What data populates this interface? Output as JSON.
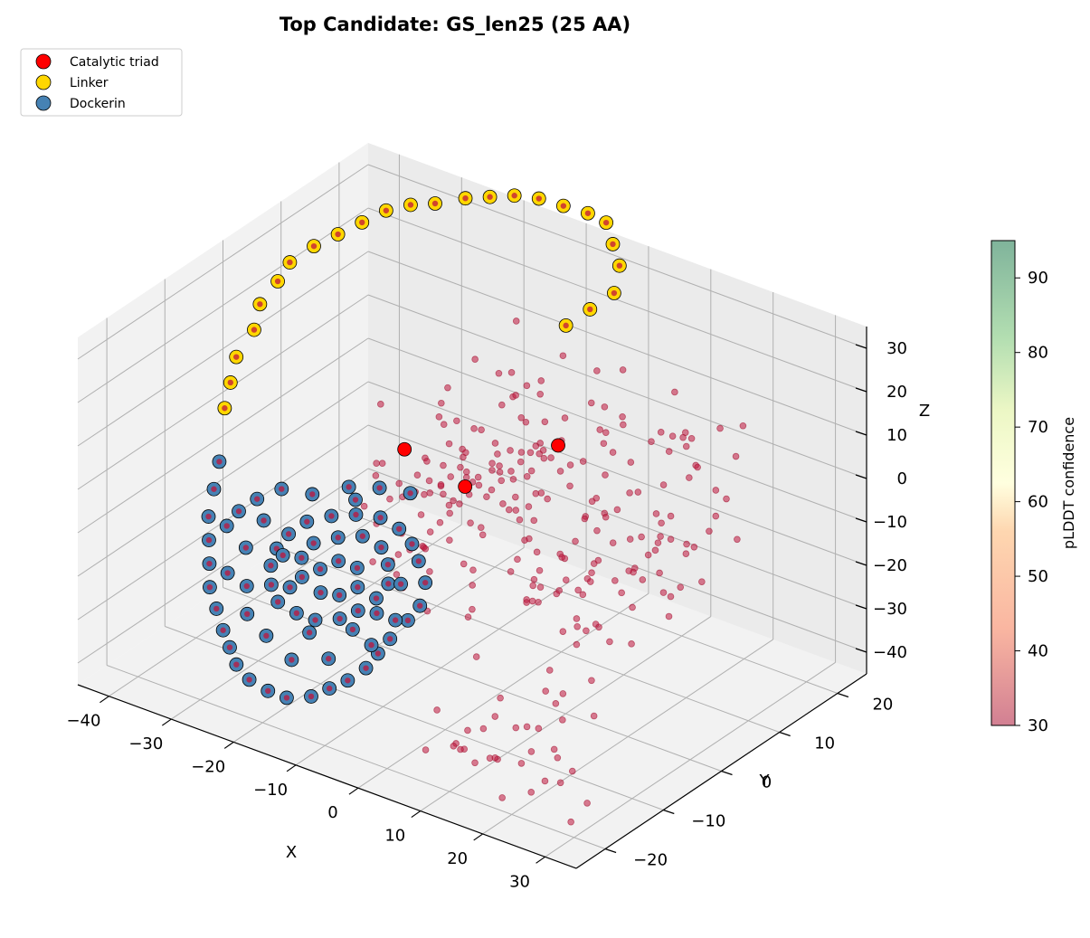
{
  "chart_data": {
    "type": "scatter",
    "projection": "3d",
    "title": "Top Candidate: GS_len25 (25 AA)",
    "xlabel": "X",
    "ylabel": "Y",
    "zlabel": "Z",
    "xlim": [
      -45,
      35
    ],
    "ylim": [
      -25,
      25
    ],
    "zlim": [
      -45,
      35
    ],
    "x_ticks": [
      -40,
      -30,
      -20,
      -10,
      0,
      10,
      20,
      30
    ],
    "y_ticks": [
      -20,
      -10,
      0,
      10,
      20
    ],
    "z_ticks": [
      -40,
      -30,
      -20,
      -10,
      0,
      10,
      20,
      30
    ],
    "grid": true,
    "legend_position": "top-left",
    "legend": [
      {
        "label": "Catalytic triad",
        "color": "#ff0000"
      },
      {
        "label": "Linker",
        "color": "#ffd700"
      },
      {
        "label": "Dockerin",
        "color": "#4682b4"
      }
    ],
    "colorbar": {
      "label": "pLDDT confidence",
      "ticks": [
        30,
        40,
        50,
        60,
        70,
        80,
        90
      ],
      "range": [
        30,
        95
      ],
      "colormap": "RdYlGn"
    },
    "series": [
      {
        "name": "Catalytic triad",
        "color": "#ff0000",
        "points": [
          [
            -14,
            -2,
            5
          ],
          [
            6,
            3,
            12
          ],
          [
            -8,
            2,
            -4
          ]
        ]
      },
      {
        "name": "Linker",
        "color": "#ffd700",
        "points": [
          [
            -41,
            -4,
            2
          ],
          [
            -41,
            -3,
            7
          ],
          [
            -41,
            -2,
            12
          ],
          [
            -40,
            0,
            17
          ],
          [
            -40,
            1,
            22
          ],
          [
            -39,
            3,
            26
          ],
          [
            -38,
            4,
            30
          ],
          [
            -36,
            6,
            33
          ],
          [
            -34,
            8,
            35
          ],
          [
            -32,
            10,
            37
          ],
          [
            -30,
            12,
            39
          ],
          [
            -27,
            13,
            41
          ],
          [
            -24,
            14,
            42
          ],
          [
            -21,
            16,
            43
          ],
          [
            -18,
            17,
            44
          ],
          [
            -15,
            18,
            45
          ],
          [
            -12,
            19,
            45
          ],
          [
            -9,
            20,
            44
          ],
          [
            -6,
            21,
            43
          ],
          [
            -4,
            22,
            41
          ],
          [
            -2,
            21,
            38
          ],
          [
            0,
            20,
            35
          ],
          [
            1,
            18,
            31
          ],
          [
            -1,
            16,
            28
          ],
          [
            -3,
            14,
            25
          ]
        ]
      },
      {
        "name": "Dockerin",
        "color": "#4682b4",
        "points": [
          [
            -40,
            -6,
            -8
          ],
          [
            -39,
            -8,
            -12
          ],
          [
            -38,
            -10,
            -16
          ],
          [
            -37,
            -11,
            -20
          ],
          [
            -36,
            -12,
            -24
          ],
          [
            -35,
            -13,
            -28
          ],
          [
            -33,
            -14,
            -31
          ],
          [
            -31,
            -15,
            -34
          ],
          [
            -29,
            -16,
            -36
          ],
          [
            -27,
            -17,
            -38
          ],
          [
            -24,
            -18,
            -39
          ],
          [
            -21,
            -18,
            -40
          ],
          [
            -18,
            -18,
            -40
          ],
          [
            -15,
            -17,
            -39
          ],
          [
            -13,
            -16,
            -37
          ],
          [
            -11,
            -15,
            -35
          ],
          [
            -9,
            -14,
            -32
          ],
          [
            -8,
            -13,
            -29
          ],
          [
            -7,
            -12,
            -26
          ],
          [
            -6,
            -10,
            -23
          ],
          [
            -5,
            -9,
            -20
          ],
          [
            -6,
            -7,
            -17
          ],
          [
            -8,
            -6,
            -14
          ],
          [
            -10,
            -5,
            -12
          ],
          [
            -13,
            -4,
            -11
          ],
          [
            -16,
            -4,
            -10
          ],
          [
            -19,
            -5,
            -10
          ],
          [
            -22,
            -6,
            -11
          ],
          [
            -25,
            -7,
            -13
          ],
          [
            -27,
            -8,
            -16
          ],
          [
            -28,
            -9,
            -19
          ],
          [
            -28,
            -10,
            -22
          ],
          [
            -27,
            -11,
            -25
          ],
          [
            -25,
            -12,
            -27
          ],
          [
            -22,
            -12,
            -28
          ],
          [
            -19,
            -12,
            -28
          ],
          [
            -16,
            -11,
            -27
          ],
          [
            -14,
            -10,
            -25
          ],
          [
            -12,
            -9,
            -22
          ],
          [
            -11,
            -8,
            -19
          ],
          [
            -12,
            -7,
            -16
          ],
          [
            -14,
            -6,
            -14
          ],
          [
            -17,
            -6,
            -13
          ],
          [
            -20,
            -7,
            -14
          ],
          [
            -23,
            -8,
            -16
          ],
          [
            -24,
            -9,
            -19
          ],
          [
            -23,
            -10,
            -22
          ],
          [
            -20,
            -10,
            -24
          ],
          [
            -17,
            -10,
            -23
          ],
          [
            -15,
            -9,
            -21
          ],
          [
            -16,
            -8,
            -18
          ],
          [
            -19,
            -8,
            -18
          ],
          [
            -21,
            -9,
            -20
          ],
          [
            -30,
            -6,
            -9
          ],
          [
            -33,
            -7,
            -12
          ],
          [
            -35,
            -8,
            -15
          ],
          [
            -32,
            -10,
            -20
          ],
          [
            -30,
            -12,
            -26
          ],
          [
            -25,
            -14,
            -33
          ],
          [
            -20,
            -15,
            -35
          ],
          [
            -15,
            -14,
            -33
          ],
          [
            -10,
            -12,
            -29
          ],
          [
            -8,
            -10,
            -24
          ],
          [
            -9,
            -8,
            -18
          ],
          [
            -26,
            -5,
            -9
          ],
          [
            -22,
            -3,
            -7
          ],
          [
            -18,
            -2,
            -6
          ],
          [
            -14,
            -1,
            -6
          ],
          [
            -34,
            -11,
            -26
          ],
          [
            -36,
            -9,
            -18
          ],
          [
            -29,
            -13,
            -31
          ],
          [
            -24,
            -11,
            -24
          ],
          [
            -19,
            -13,
            -30
          ],
          [
            -13,
            -12,
            -27
          ],
          [
            -11,
            -10,
            -24
          ],
          [
            -27,
            -9,
            -20
          ],
          [
            -31,
            -8,
            -15
          ],
          [
            -20,
            -4,
            -8
          ]
        ]
      }
    ]
  }
}
